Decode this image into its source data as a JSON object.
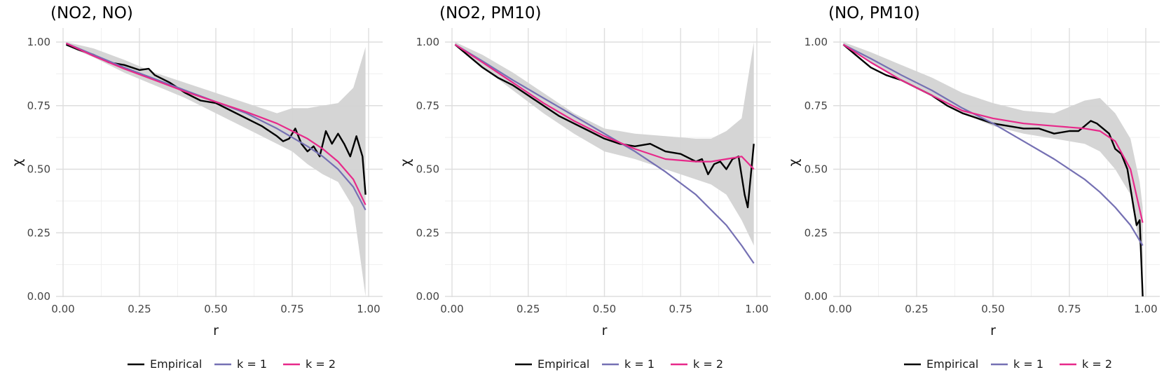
{
  "chart_data": [
    {
      "type": "line",
      "title": "(NO2, NO)",
      "xlabel": "r",
      "ylabel": "χ",
      "xlim": [
        0,
        1
      ],
      "ylim": [
        0,
        1
      ],
      "x_ticks": [
        "0.00",
        "0.25",
        "0.50",
        "0.75",
        "1.00"
      ],
      "y_ticks": [
        "0.00",
        "0.25",
        "0.50",
        "0.75",
        "1.00"
      ],
      "grid": true,
      "legend_position": "bottom",
      "band": {
        "x": [
          0.01,
          0.1,
          0.2,
          0.3,
          0.4,
          0.5,
          0.6,
          0.7,
          0.75,
          0.8,
          0.85,
          0.9,
          0.95,
          0.99
        ],
        "lower": [
          0.985,
          0.94,
          0.88,
          0.83,
          0.78,
          0.72,
          0.66,
          0.6,
          0.57,
          0.52,
          0.48,
          0.45,
          0.35,
          0.0
        ],
        "upper": [
          1.0,
          0.975,
          0.93,
          0.88,
          0.84,
          0.8,
          0.76,
          0.72,
          0.74,
          0.74,
          0.75,
          0.76,
          0.82,
          0.98
        ]
      },
      "series": [
        {
          "name": "Empirical",
          "color": "#000000",
          "x": [
            0.01,
            0.05,
            0.1,
            0.15,
            0.2,
            0.25,
            0.28,
            0.3,
            0.35,
            0.4,
            0.45,
            0.5,
            0.55,
            0.6,
            0.65,
            0.7,
            0.72,
            0.74,
            0.76,
            0.78,
            0.8,
            0.82,
            0.84,
            0.86,
            0.88,
            0.9,
            0.92,
            0.94,
            0.96,
            0.98,
            0.99
          ],
          "y": [
            0.99,
            0.97,
            0.95,
            0.92,
            0.91,
            0.89,
            0.895,
            0.87,
            0.84,
            0.8,
            0.77,
            0.76,
            0.73,
            0.7,
            0.67,
            0.63,
            0.61,
            0.62,
            0.66,
            0.6,
            0.57,
            0.59,
            0.55,
            0.65,
            0.6,
            0.64,
            0.6,
            0.55,
            0.63,
            0.55,
            0.4
          ]
        },
        {
          "name": "k = 1",
          "color": "#7570b3",
          "x": [
            0.01,
            0.1,
            0.2,
            0.3,
            0.4,
            0.5,
            0.6,
            0.7,
            0.8,
            0.85,
            0.9,
            0.95,
            0.99
          ],
          "y": [
            0.995,
            0.95,
            0.9,
            0.855,
            0.81,
            0.765,
            0.72,
            0.66,
            0.59,
            0.55,
            0.5,
            0.43,
            0.34
          ]
        },
        {
          "name": "k = 2",
          "color": "#e7298a",
          "x": [
            0.01,
            0.1,
            0.2,
            0.3,
            0.4,
            0.5,
            0.6,
            0.7,
            0.8,
            0.85,
            0.9,
            0.95,
            0.99
          ],
          "y": [
            0.995,
            0.945,
            0.895,
            0.85,
            0.805,
            0.765,
            0.725,
            0.68,
            0.62,
            0.58,
            0.53,
            0.46,
            0.36
          ]
        }
      ]
    },
    {
      "type": "line",
      "title": "(NO2, PM10)",
      "xlabel": "r",
      "ylabel": "χ",
      "xlim": [
        0,
        1
      ],
      "ylim": [
        0,
        1
      ],
      "x_ticks": [
        "0.00",
        "0.25",
        "0.50",
        "0.75",
        "1.00"
      ],
      "y_ticks": [
        "0.00",
        "0.25",
        "0.50",
        "0.75",
        "1.00"
      ],
      "grid": true,
      "legend_position": "bottom",
      "band": {
        "x": [
          0.01,
          0.1,
          0.2,
          0.3,
          0.4,
          0.5,
          0.6,
          0.7,
          0.8,
          0.85,
          0.9,
          0.95,
          0.99
        ],
        "lower": [
          0.985,
          0.9,
          0.81,
          0.72,
          0.64,
          0.57,
          0.54,
          0.5,
          0.46,
          0.44,
          0.4,
          0.3,
          0.2
        ],
        "upper": [
          1.0,
          0.95,
          0.88,
          0.8,
          0.72,
          0.66,
          0.64,
          0.63,
          0.62,
          0.62,
          0.65,
          0.7,
          1.0
        ]
      },
      "series": [
        {
          "name": "Empirical",
          "color": "#000000",
          "x": [
            0.01,
            0.05,
            0.1,
            0.15,
            0.2,
            0.25,
            0.3,
            0.35,
            0.4,
            0.45,
            0.5,
            0.55,
            0.6,
            0.65,
            0.7,
            0.75,
            0.8,
            0.82,
            0.84,
            0.86,
            0.88,
            0.9,
            0.92,
            0.94,
            0.96,
            0.97,
            0.99
          ],
          "y": [
            0.99,
            0.95,
            0.9,
            0.86,
            0.83,
            0.79,
            0.75,
            0.71,
            0.68,
            0.65,
            0.62,
            0.6,
            0.59,
            0.6,
            0.57,
            0.56,
            0.53,
            0.54,
            0.48,
            0.52,
            0.53,
            0.5,
            0.54,
            0.55,
            0.4,
            0.35,
            0.6
          ]
        },
        {
          "name": "k = 1",
          "color": "#7570b3",
          "x": [
            0.01,
            0.1,
            0.2,
            0.3,
            0.4,
            0.5,
            0.6,
            0.7,
            0.8,
            0.85,
            0.9,
            0.95,
            0.99
          ],
          "y": [
            0.99,
            0.925,
            0.85,
            0.78,
            0.71,
            0.64,
            0.57,
            0.49,
            0.4,
            0.34,
            0.28,
            0.2,
            0.13
          ]
        },
        {
          "name": "k = 2",
          "color": "#e7298a",
          "x": [
            0.01,
            0.1,
            0.2,
            0.3,
            0.4,
            0.5,
            0.6,
            0.7,
            0.8,
            0.85,
            0.9,
            0.95,
            0.99
          ],
          "y": [
            0.99,
            0.92,
            0.84,
            0.76,
            0.69,
            0.63,
            0.58,
            0.54,
            0.53,
            0.53,
            0.54,
            0.55,
            0.5
          ]
        }
      ]
    },
    {
      "type": "line",
      "title": "(NO, PM10)",
      "xlabel": "r",
      "ylabel": "χ",
      "xlim": [
        0,
        1
      ],
      "ylim": [
        0,
        1
      ],
      "x_ticks": [
        "0.00",
        "0.25",
        "0.50",
        "0.75",
        "1.00"
      ],
      "y_ticks": [
        "0.00",
        "0.25",
        "0.50",
        "0.75",
        "1.00"
      ],
      "grid": true,
      "legend_position": "bottom",
      "band": {
        "x": [
          0.01,
          0.1,
          0.2,
          0.3,
          0.4,
          0.5,
          0.6,
          0.7,
          0.8,
          0.85,
          0.9,
          0.95,
          0.98,
          0.99
        ],
        "lower": [
          0.985,
          0.92,
          0.85,
          0.79,
          0.72,
          0.67,
          0.64,
          0.62,
          0.6,
          0.57,
          0.5,
          0.4,
          0.2,
          0.0
        ],
        "upper": [
          1.0,
          0.96,
          0.91,
          0.86,
          0.8,
          0.76,
          0.73,
          0.72,
          0.77,
          0.78,
          0.72,
          0.62,
          0.45,
          0.35
        ]
      },
      "series": [
        {
          "name": "Empirical",
          "color": "#000000",
          "x": [
            0.01,
            0.05,
            0.1,
            0.15,
            0.2,
            0.25,
            0.3,
            0.35,
            0.4,
            0.45,
            0.5,
            0.55,
            0.6,
            0.65,
            0.7,
            0.75,
            0.78,
            0.8,
            0.82,
            0.84,
            0.86,
            0.88,
            0.9,
            0.92,
            0.94,
            0.96,
            0.97,
            0.98,
            0.99
          ],
          "y": [
            0.99,
            0.95,
            0.9,
            0.87,
            0.85,
            0.82,
            0.79,
            0.75,
            0.72,
            0.7,
            0.68,
            0.67,
            0.66,
            0.66,
            0.64,
            0.65,
            0.65,
            0.67,
            0.69,
            0.68,
            0.66,
            0.64,
            0.58,
            0.56,
            0.5,
            0.35,
            0.28,
            0.3,
            0.0
          ]
        },
        {
          "name": "k = 1",
          "color": "#7570b3",
          "x": [
            0.01,
            0.1,
            0.2,
            0.3,
            0.4,
            0.5,
            0.6,
            0.7,
            0.8,
            0.85,
            0.9,
            0.95,
            0.99
          ],
          "y": [
            0.99,
            0.935,
            0.87,
            0.81,
            0.74,
            0.68,
            0.61,
            0.54,
            0.46,
            0.41,
            0.35,
            0.28,
            0.2
          ]
        },
        {
          "name": "k = 2",
          "color": "#e7298a",
          "x": [
            0.01,
            0.1,
            0.2,
            0.3,
            0.4,
            0.5,
            0.6,
            0.7,
            0.8,
            0.85,
            0.9,
            0.95,
            0.99
          ],
          "y": [
            0.99,
            0.92,
            0.85,
            0.79,
            0.73,
            0.7,
            0.68,
            0.67,
            0.66,
            0.65,
            0.61,
            0.5,
            0.29
          ]
        }
      ]
    }
  ]
}
